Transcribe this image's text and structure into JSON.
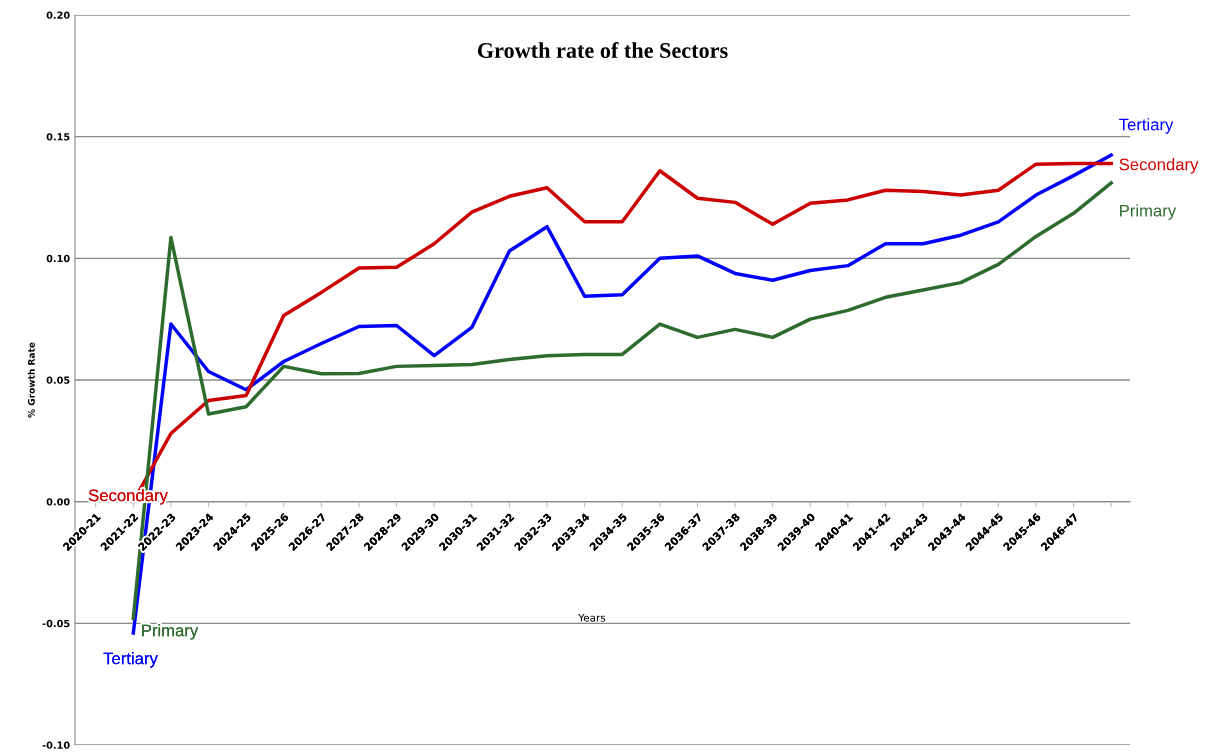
{
  "chart_data": {
    "type": "line",
    "title": "Growth rate of the Sectors",
    "xlabel": "Years",
    "ylabel": "% Growth Rate",
    "categories": [
      "2020-21",
      "2021-22",
      "2022-23",
      "2023-24",
      "2024-25",
      "2025-26",
      "2026-27",
      "2027-28",
      "2028-29",
      "2029-30",
      "2030-31",
      "2031-32",
      "2032-33",
      "2033-34",
      "2034-35",
      "2035-36",
      "2036-37",
      "2037-38",
      "2038-39",
      "2039-40",
      "2040-41",
      "2041-42",
      "2042-43",
      "2043-44",
      "2044-45",
      "2045-46",
      "2046-47",
      null
    ],
    "series": [
      {
        "name": "Tertiary",
        "color": "#0000ff",
        "values": [
          null,
          -0.054,
          0.073,
          0.0535,
          0.046,
          0.0576,
          0.065,
          0.072,
          0.0724,
          0.06,
          0.0716,
          0.103,
          0.113,
          0.0844,
          0.085,
          0.1,
          0.101,
          0.0938,
          0.091,
          0.095,
          0.097,
          0.106,
          0.106,
          0.1095,
          0.115,
          0.126,
          0.134,
          0.1424
        ]
      },
      {
        "name": "Secondary",
        "color": "#cc0000",
        "values": [
          null,
          0.0,
          0.028,
          0.0416,
          0.0436,
          0.0765,
          0.086,
          0.096,
          0.0963,
          0.106,
          0.119,
          0.1255,
          0.129,
          0.115,
          0.115,
          0.136,
          0.1247,
          0.123,
          0.114,
          0.1226,
          0.124,
          0.128,
          0.1275,
          0.126,
          0.128,
          0.1387,
          0.139,
          0.139
        ]
      },
      {
        "name": "Primary",
        "color": "#2e6b2e",
        "values": [
          null,
          -0.048,
          0.1086,
          0.036,
          0.039,
          0.0556,
          0.0526,
          0.0527,
          0.0556,
          0.056,
          0.0564,
          0.0584,
          0.06,
          0.0605,
          0.0605,
          0.073,
          0.0675,
          0.0708,
          0.0675,
          0.075,
          0.0786,
          0.084,
          0.087,
          0.09,
          0.0975,
          0.109,
          0.1185,
          0.131
        ]
      }
    ],
    "ylim": [
      -0.1,
      0.2
    ],
    "yticks": [
      {
        "value": -0.1,
        "label": "-0.10"
      },
      {
        "value": -0.05,
        "label": "-0.05"
      },
      {
        "value": 0,
        "label": "0.00"
      },
      {
        "value": 0.05,
        "label": "0.05"
      },
      {
        "value": 0.1,
        "label": "0.10"
      },
      {
        "value": 0.15,
        "label": "0.15"
      },
      {
        "value": 0.2,
        "label": "0.20"
      }
    ],
    "grid": "y",
    "legend": false,
    "marker": "none",
    "line_style": "solid"
  }
}
